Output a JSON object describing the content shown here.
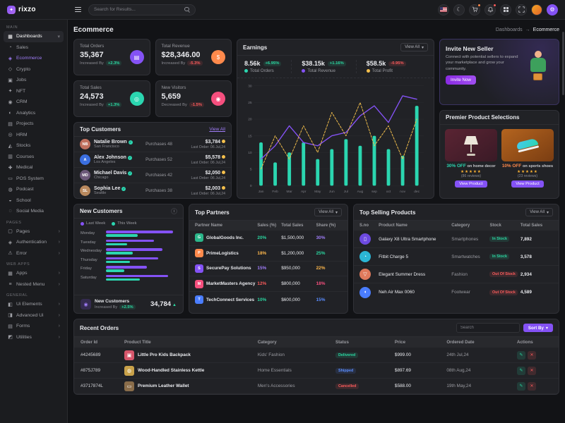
{
  "brand": {
    "name": "rixzo",
    "logo_glyph": "✦"
  },
  "ui": {
    "caret_down": "▾",
    "chevron_right": "›",
    "check": "✓",
    "arrow_up": "▲",
    "info": "i"
  },
  "header": {
    "search_placeholder": "Search for Results...",
    "icons": {
      "moon": "☾",
      "gear": "⚙"
    }
  },
  "page": {
    "title": "Ecommerce"
  },
  "breadcrumb": {
    "parent": "Dashboards",
    "separator": "→",
    "current": "Ecommerce"
  },
  "sidebar": {
    "sections": [
      {
        "label": "Main",
        "items": [
          {
            "label": "Dashboards",
            "icon": "▦",
            "chev": "▾"
          },
          {
            "label": "Sales",
            "icon": "◔"
          },
          {
            "label": "Ecommerce",
            "icon": "◈"
          },
          {
            "label": "Crypto",
            "icon": "◇"
          },
          {
            "label": "Jobs",
            "icon": "▣"
          },
          {
            "label": "NFT",
            "icon": "✦"
          },
          {
            "label": "CRM",
            "icon": "◉"
          },
          {
            "label": "Analytics",
            "icon": "◐"
          },
          {
            "label": "Projects",
            "icon": "▤"
          },
          {
            "label": "HRM",
            "icon": "◎"
          },
          {
            "label": "Stocks",
            "icon": "◭"
          },
          {
            "label": "Courses",
            "icon": "▥"
          },
          {
            "label": "Medical",
            "icon": "✚"
          },
          {
            "label": "POS System",
            "icon": "▭"
          },
          {
            "label": "Podcast",
            "icon": "◍"
          },
          {
            "label": "School",
            "icon": "◒"
          },
          {
            "label": "Social Media",
            "icon": "◌"
          }
        ]
      },
      {
        "label": "Pages",
        "items": [
          {
            "label": "Pages",
            "icon": "▢",
            "chev": "›"
          },
          {
            "label": "Authentication",
            "icon": "◈",
            "chev": "›"
          },
          {
            "label": "Error",
            "icon": "⚠",
            "chev": "›"
          }
        ]
      },
      {
        "label": "Web Apps",
        "items": [
          {
            "label": "Apps",
            "icon": "▦",
            "chev": "›"
          },
          {
            "label": "Nested Menu",
            "icon": "≡",
            "chev": "›"
          }
        ]
      },
      {
        "label": "General",
        "items": [
          {
            "label": "Ui Elements",
            "icon": "◧",
            "chev": "›"
          },
          {
            "label": "Advanced Ui",
            "icon": "◨",
            "chev": "›"
          },
          {
            "label": "Forms",
            "icon": "▤",
            "chev": "›"
          },
          {
            "label": "Utilities",
            "icon": "◩",
            "chev": "›"
          }
        ]
      }
    ]
  },
  "stats": [
    {
      "label": "Total Orders",
      "value": "35,367",
      "change_label": "Increased By",
      "change": "+2.3%",
      "trend": "up",
      "icon": "▤",
      "icon_bg": "#8452f5"
    },
    {
      "label": "Total Revenue",
      "value": "$28,346.00",
      "change_label": "Increased By",
      "change": "-5.3%",
      "trend": "down",
      "icon": "$",
      "icon_bg": "#ff8a4c"
    },
    {
      "label": "Total Sales",
      "value": "24,573",
      "change_label": "Increased By",
      "change": "+1.3%",
      "trend": "up",
      "icon": "◎",
      "icon_bg": "#2bd6b0"
    },
    {
      "label": "New Visitors",
      "value": "5,659",
      "change_label": "Decreased By",
      "change": "-1.5%",
      "trend": "down",
      "icon": "◉",
      "icon_bg": "#f54f7e"
    }
  ],
  "top_customers": {
    "title": "Top Customers",
    "view_all": "View All",
    "rows": [
      {
        "name": "Natalie Brown",
        "initials": "NB",
        "avatar_bg": "#c0705e",
        "city": "San Francisco",
        "purchases": "Purchases 48",
        "amount": "$3,784",
        "last_order": "Last Order: 06 Jul,24"
      },
      {
        "name": "Alex Johnson",
        "initials": "A",
        "avatar_bg": "#3b6fe0",
        "city": "Los Angeles",
        "purchases": "Purchases 52",
        "amount": "$5,578",
        "last_order": "Last Order: 06 Jul,24"
      },
      {
        "name": "Michael Davis",
        "initials": "MD",
        "avatar_bg": "#6d597a",
        "city": "Chicago",
        "purchases": "Purchases 42",
        "amount": "$2,050",
        "last_order": "Last Order: 06 Jul,24"
      },
      {
        "name": "Sophia Lee",
        "initials": "SL",
        "avatar_bg": "#b9895e",
        "city": "Seattle",
        "purchases": "Purchases 38",
        "amount": "$2,003",
        "last_order": "Last Order: 06 Jul,24"
      }
    ]
  },
  "earnings": {
    "title": "Earnings",
    "view_all": "View All",
    "stats": [
      {
        "value": "8.56k",
        "change": "+6.95%",
        "trend": "up",
        "label": "Total Orders"
      },
      {
        "value": "$38.15k",
        "change": "+1.16%",
        "trend": "up",
        "label": "Total Revenue"
      },
      {
        "value": "$58.5k",
        "change": "-0.95%",
        "trend": "down",
        "label": "Total Profit"
      }
    ]
  },
  "invite": {
    "title": "Invite New Seller",
    "body": "Connect with potential sellers to expand your marketplace and grow your community.",
    "button": "Invite Now"
  },
  "premier": {
    "title": "Premier Product Selections",
    "products": [
      {
        "offer": "30% OFF",
        "offer_color": "#2bd6b0",
        "target": "on home decor",
        "stars": "★★★★★",
        "reviews": "(86 reviews)",
        "button": "View Product"
      },
      {
        "offer": "10% OFF",
        "offer_color": "#ff8a4c",
        "target": "on sports shoes",
        "stars": "★★★★★",
        "reviews": "(23 reviews)",
        "button": "View Product"
      }
    ]
  },
  "new_customers": {
    "title": "New Customers",
    "footer": {
      "icon": "◉",
      "label": "New Customers",
      "change_label": "Increased By",
      "change": "+2.5%",
      "trend": "up",
      "value": "34,784"
    }
  },
  "top_partners": {
    "title": "Top Partners",
    "view_all": "View All",
    "columns": [
      "Partner Name",
      "Sales (%)",
      "Total Sales",
      "Share (%)"
    ],
    "rows": [
      {
        "name": "GlobalGoods Inc.",
        "initial": "G",
        "avatar_bg": "#2bb68a",
        "sales": "20%",
        "sales_color": "#2bd6a0",
        "total": "$1,500,000",
        "share": "30%",
        "share_color": "#a07df8"
      },
      {
        "name": "PrimeLogistics",
        "initial": "P",
        "avatar_bg": "#ff8a4c",
        "sales": "18%",
        "sales_color": "#ffb84c",
        "total": "$1,200,000",
        "share": "25%",
        "share_color": "#2bd6a0"
      },
      {
        "name": "SecurePay Solutions",
        "initial": "S",
        "avatar_bg": "#8452f5",
        "sales": "15%",
        "sales_color": "#a07df8",
        "total": "$950,000",
        "share": "22%",
        "share_color": "#ffb84c"
      },
      {
        "name": "MarketMasters Agency",
        "initial": "M",
        "avatar_bg": "#f54f7e",
        "sales": "12%",
        "sales_color": "#fb5b5b",
        "total": "$800,000",
        "share": "18%",
        "share_color": "#f54f7e"
      },
      {
        "name": "TechConnect Services",
        "initial": "T",
        "avatar_bg": "#4a7dff",
        "sales": "10%",
        "sales_color": "#2bd6a0",
        "total": "$600,000",
        "share": "15%",
        "share_color": "#5a8dff"
      }
    ]
  },
  "top_selling": {
    "title": "Top Selling Products",
    "view_all": "View All",
    "columns": [
      "S.no",
      "Product Name",
      "Category",
      "Stock",
      "Total Sales"
    ],
    "rows": [
      {
        "glyph": "▯",
        "avatar_bg": "#6d4ae0",
        "name": "Galaxy X8 Ultra Smartphone",
        "category": "Smartphones",
        "stock": "In Stock",
        "stock_state": "in",
        "sales": "7,892"
      },
      {
        "glyph": "◔",
        "avatar_bg": "#2bb6d6",
        "name": "Fitbit Charge 5",
        "category": "Smartwatches",
        "stock": "In Stock",
        "stock_state": "in",
        "sales": "3,578"
      },
      {
        "glyph": "▽",
        "avatar_bg": "#e07a5c",
        "name": "Elegant Summer Dress",
        "category": "Fashion",
        "stock": "Out Of Stock",
        "stock_state": "out",
        "sales": "2,934"
      },
      {
        "glyph": "◖",
        "avatar_bg": "#4a7dff",
        "name": "Neh Air Max 0060",
        "category": "Footwear",
        "stock": "Out Of Stock",
        "stock_state": "out",
        "sales": "4,589"
      }
    ]
  },
  "recent_orders": {
    "title": "Recent Orders",
    "search_placeholder": "Search",
    "sort_label": "Sort By",
    "columns": [
      "Order Id",
      "Product Title",
      "Category",
      "Status",
      "Price",
      "Ordered Date",
      "Actions"
    ],
    "actions": {
      "edit": "✎",
      "delete": "✕"
    },
    "rows": [
      {
        "id": "#4245689",
        "glyph": "▣",
        "thumb_bg": "#d6566b",
        "title": "Little Pro Kids Backpack",
        "category": "Kids' Fashion",
        "status": "Delivered",
        "status_state": "delivered",
        "price": "$999.00",
        "date": "24th Jul,24"
      },
      {
        "id": "#875J789",
        "glyph": "◍",
        "thumb_bg": "#c9a24a",
        "title": "Wood-Handled Stainless Kettle",
        "category": "Home Essentials",
        "status": "Shipped",
        "status_state": "shipped",
        "price": "$897.69",
        "date": "08th Aug,24"
      },
      {
        "id": "#3717874L",
        "glyph": "▭",
        "thumb_bg": "#8a6d4a",
        "title": "Premium Leather Wallet",
        "category": "Men's Accessories",
        "status": "Cancelled",
        "status_state": "cancelled",
        "price": "$588.00",
        "date": "19th May,24"
      }
    ]
  },
  "chart_data": [
    {
      "id": "earnings",
      "type": "combo-bar-line",
      "title": "Earnings",
      "categories": [
        "Jan",
        "Feb",
        "Mar",
        "Apr",
        "May",
        "Jun",
        "Jul",
        "Aug",
        "sep",
        "oct",
        "nov",
        "dec"
      ],
      "series": [
        {
          "name": "Total Orders",
          "type": "bar",
          "color": "#2bd6b0",
          "values": [
            13,
            7,
            10,
            13,
            8,
            11,
            14,
            12,
            15,
            11,
            9,
            24
          ]
        },
        {
          "name": "Total Revenue",
          "type": "line",
          "color": "#8452f5",
          "values": [
            8,
            12,
            18,
            13,
            12,
            15,
            16,
            21,
            24,
            19,
            27,
            26
          ]
        },
        {
          "name": "Total Profit",
          "type": "line-dashed",
          "color": "#f5c04c",
          "values": [
            5,
            15,
            8,
            18,
            10,
            22,
            15,
            25,
            12,
            18,
            8,
            20
          ]
        }
      ],
      "ylim": [
        0,
        30
      ],
      "yticks": [
        0,
        5,
        10,
        15,
        20,
        25,
        30
      ],
      "grid": true,
      "legend_position": "none"
    },
    {
      "id": "new_customers",
      "type": "horizontal-bar",
      "title": "New Customers",
      "categories": [
        "Monday",
        "Tuesday",
        "Wednesday",
        "Thursday",
        "Friday",
        "Saturday"
      ],
      "series": [
        {
          "name": "Last Week",
          "color": "#8452f5",
          "values": [
            95,
            68,
            80,
            74,
            58,
            88
          ]
        },
        {
          "name": "This Week",
          "color": "#2bd6b0",
          "values": [
            45,
            30,
            38,
            34,
            26,
            48
          ]
        }
      ],
      "xlim": [
        0,
        100
      ],
      "legend_position": "top"
    }
  ]
}
